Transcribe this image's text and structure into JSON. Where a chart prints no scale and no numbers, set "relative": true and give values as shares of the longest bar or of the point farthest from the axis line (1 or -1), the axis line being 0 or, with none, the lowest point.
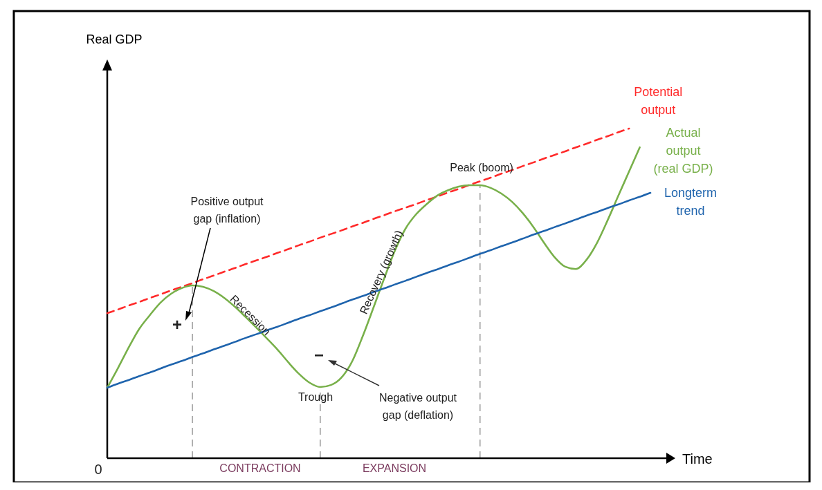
{
  "chart_data": {
    "type": "line",
    "relative": true,
    "xlabel": "Time",
    "legend": false,
    "categories": [
      null,
      null,
      null,
      null,
      null,
      null,
      null,
      null,
      null,
      null,
      null,
      null,
      null,
      null,
      null,
      null,
      null,
      null,
      null,
      null,
      null,
      null,
      null,
      null,
      null,
      null,
      null,
      null,
      null,
      null,
      null,
      null,
      null,
      null,
      null,
      null,
      null,
      null,
      null,
      null,
      null,
      null,
      null,
      null,
      null,
      null,
      null,
      null,
      null,
      null,
      null,
      null
    ],
    "series": [
      {
        "name": "Potential output",
        "color": "#ff2a2a",
        "line_style": "dashed",
        "values": [
          0.44,
          0.451,
          0.463,
          0.474,
          0.486,
          0.497,
          0.509,
          0.52,
          0.531,
          0.543,
          0.554,
          0.566,
          0.577,
          0.589,
          0.6,
          0.611,
          0.623,
          0.634,
          0.646,
          0.657,
          0.669,
          0.68,
          0.691,
          0.703,
          0.714,
          0.726,
          0.737,
          0.749,
          0.76,
          0.771,
          0.783,
          0.794,
          0.806,
          0.817,
          0.829,
          0.84,
          0.851,
          0.863,
          0.874,
          0.886,
          0.897,
          0.909,
          0.92,
          0.931,
          0.943,
          0.954,
          0.966,
          0.977,
          0.989,
          1.0,
          null,
          null
        ]
      },
      {
        "name": "Actual output (real GDP)",
        "color": "#78b04a",
        "values": [
          0.214,
          0.273,
          0.335,
          0.392,
          0.434,
          0.472,
          0.499,
          0.516,
          0.524,
          0.52,
          0.507,
          0.486,
          0.459,
          0.428,
          0.396,
          0.363,
          0.329,
          0.291,
          0.256,
          0.229,
          0.216,
          0.222,
          0.245,
          0.294,
          0.371,
          0.457,
          0.545,
          0.629,
          0.696,
          0.74,
          0.771,
          0.797,
          0.813,
          0.824,
          0.828,
          0.828,
          0.82,
          0.803,
          0.778,
          0.744,
          0.702,
          0.654,
          0.61,
          0.581,
          0.574,
          0.602,
          0.654,
          0.723,
          0.797,
          0.87,
          0.943,
          null
        ]
      },
      {
        "name": "Longterm trend",
        "color": "#1f64ad",
        "values": [
          0.214,
          0.226,
          0.237,
          0.249,
          0.26,
          0.272,
          0.284,
          0.295,
          0.307,
          0.318,
          0.33,
          0.341,
          0.353,
          0.365,
          0.376,
          0.388,
          0.399,
          0.411,
          0.423,
          0.434,
          0.446,
          0.457,
          0.469,
          0.481,
          0.492,
          0.504,
          0.515,
          0.527,
          0.538,
          0.55,
          0.562,
          0.573,
          0.585,
          0.596,
          0.608,
          0.62,
          0.631,
          0.643,
          0.654,
          0.666,
          0.678,
          0.689,
          0.701,
          0.712,
          0.724,
          0.736,
          0.747,
          0.759,
          0.77,
          0.782,
          0.793,
          0.805
        ]
      }
    ],
    "annotations": [
      "Positive output gap (inflation)",
      "+",
      "Recession",
      "Trough",
      "−",
      "Negative output gap (deflation)",
      "Recovery (growth)",
      "Peak (boom)",
      "CONTRACTION",
      "EXPANSION",
      "0",
      "Real GDP"
    ]
  }
}
